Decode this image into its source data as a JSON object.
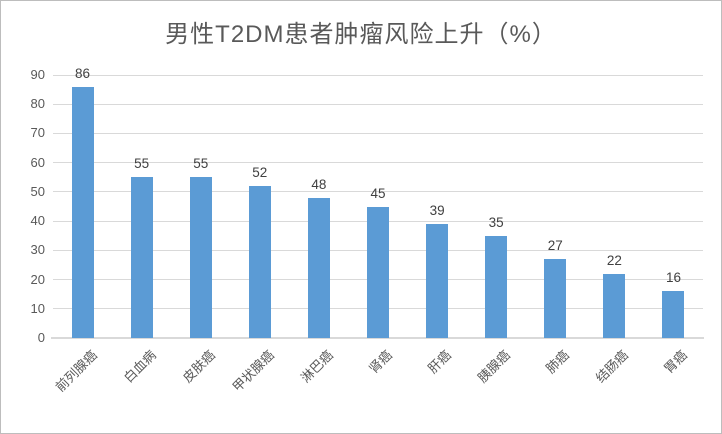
{
  "window": {
    "background_color": "#ffffff",
    "border_color": "#bdbdbd"
  },
  "chart_data": {
    "type": "bar",
    "title": "男性T2DM患者肿瘤风险上升（%）",
    "categories": [
      "前列腺癌",
      "白血病",
      "皮肤癌",
      "甲状腺癌",
      "淋巴癌",
      "肾癌",
      "肝癌",
      "胰腺癌",
      "肺癌",
      "结肠癌",
      "胃癌"
    ],
    "values": [
      86,
      55,
      55,
      52,
      48,
      45,
      39,
      35,
      27,
      22,
      16
    ],
    "data_labels": [
      "86",
      "55",
      "55",
      "52",
      "48",
      "45",
      "39",
      "35",
      "27",
      "22",
      "16"
    ],
    "xlabel": "",
    "ylabel": "",
    "ylim": [
      0,
      90
    ],
    "yticks": [
      0,
      10,
      20,
      30,
      40,
      50,
      60,
      70,
      80,
      90
    ],
    "grid": true,
    "legend": false,
    "bar_color": "#5b9bd5",
    "gridline_color": "#d9d9d9",
    "axis_line_color": "#d9d9d9",
    "title_color": "#595959",
    "tick_label_color": "#595959",
    "data_label_color": "#404040"
  }
}
